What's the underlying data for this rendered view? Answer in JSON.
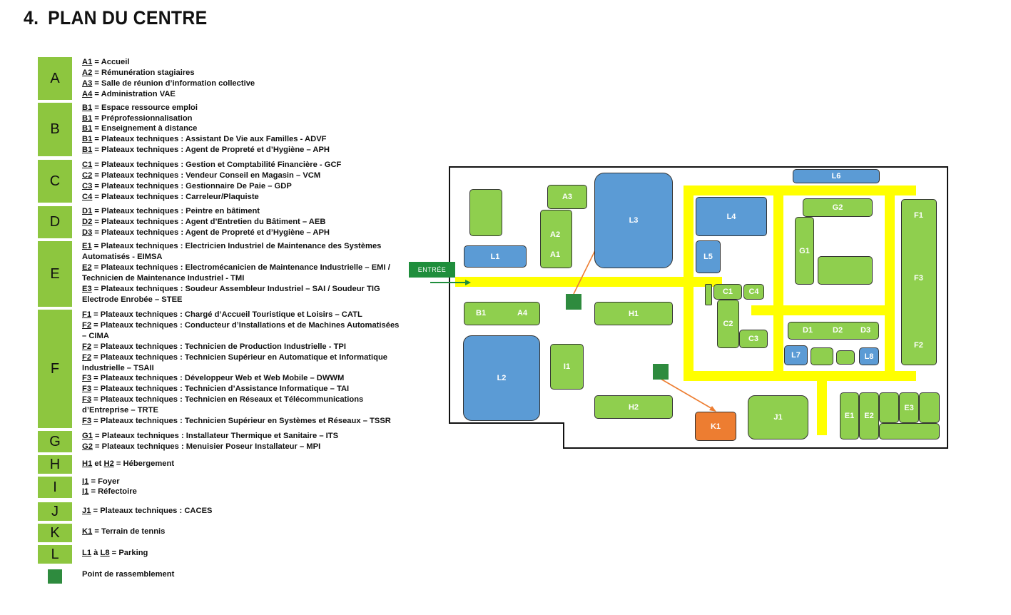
{
  "title": {
    "number": "4.",
    "text": "PLAN DU CENTRE"
  },
  "legend": [
    {
      "letter": "A",
      "lines": [
        {
          "code": "A1",
          "text": " = Accueil"
        },
        {
          "code": "A2",
          "text": " = Rémunération stagiaires"
        },
        {
          "code": "A3",
          "text": " = Salle de réunion d’information collective"
        },
        {
          "code": "A4",
          "text": " = Administration VAE"
        }
      ]
    },
    {
      "letter": "B",
      "lines": [
        {
          "code": "B1",
          "text": " = Espace ressource emploi"
        },
        {
          "code": "B1",
          "text": " = Préprofessionnalisation"
        },
        {
          "code": "B1",
          "text": " = Enseignement à distance"
        },
        {
          "code": "B1",
          "text": " = Plateaux techniques : Assistant De Vie aux Familles - ADVF"
        },
        {
          "code": "B1",
          "text": " = Plateaux techniques : Agent de Propreté et d’Hygiène – APH"
        }
      ]
    },
    {
      "letter": "C",
      "lines": [
        {
          "code": "C1",
          "text": " = Plateaux techniques : Gestion et Comptabilité Financière - GCF"
        },
        {
          "code": "C2",
          "text": " = Plateaux techniques : Vendeur Conseil en Magasin – VCM"
        },
        {
          "code": "C3",
          "text": " = Plateaux techniques : Gestionnaire De Paie – GDP"
        },
        {
          "code": "C4",
          "text": " = Plateaux techniques : Carreleur/Plaquiste"
        }
      ]
    },
    {
      "letter": "D",
      "lines": [
        {
          "code": "D1",
          "text": " = Plateaux techniques : Peintre en bâtiment"
        },
        {
          "code": "D2",
          "text": " = Plateaux techniques : Agent d’Entretien du Bâtiment – AEB"
        },
        {
          "code": "D3",
          "text": " = Plateaux techniques : Agent de Propreté et d’Hygiène – APH"
        }
      ]
    },
    {
      "letter": "E",
      "lines": [
        {
          "code": "E1",
          "text": " = Plateaux techniques : Electricien Industriel de Maintenance des Systèmes Automatisés - EIMSA"
        },
        {
          "code": "E2",
          "text": " = Plateaux techniques : Electromécanicien de Maintenance Industrielle – EMI / Technicien de Maintenance Industriel - TMI"
        },
        {
          "code": "E3",
          "text": " = Plateaux techniques : Soudeur Assembleur Industriel – SAI / Soudeur TIG Electrode Enrobée – STEE"
        }
      ]
    },
    {
      "letter": "F",
      "lines": [
        {
          "code": "F1",
          "text": " = Plateaux techniques : Chargé d’Accueil Touristique et Loisirs – CATL"
        },
        {
          "code": "F2",
          "text": " = Plateaux techniques : Conducteur d’Installations et de Machines Automatisées – CIMA"
        },
        {
          "code": "F2",
          "text": " = Plateaux techniques : Technicien de Production Industrielle - TPI"
        },
        {
          "code": "F2",
          "text": " = Plateaux techniques : Technicien Supérieur en Automatique et Informatique Industrielle – TSAII"
        },
        {
          "code": "F3",
          "text": " = Plateaux techniques : Développeur Web et Web Mobile – DWWM"
        },
        {
          "code": "F3",
          "text": " = Plateaux techniques : Technicien d’Assistance Informatique – TAI"
        },
        {
          "code": "F3",
          "text": " = Plateaux techniques : Technicien en Réseaux et Télécommunications d’Entreprise – TRTE"
        },
        {
          "code": "F3",
          "text": " = Plateaux techniques : Technicien Supérieur en Systèmes et Réseaux – TSSR"
        }
      ]
    },
    {
      "letter": "G",
      "lines": [
        {
          "code": "G1",
          "text": " = Plateaux techniques : Installateur Thermique et Sanitaire – ITS"
        },
        {
          "code": "G2",
          "text": " = Plateaux techniques : Menuisier Poseur Installateur – MPI"
        }
      ]
    },
    {
      "letter": "H",
      "lines": [
        {
          "code": "H1",
          "text": " et ",
          "code2": "H2",
          "text2": " = Hébergement"
        }
      ]
    },
    {
      "letter": "I",
      "lines": [
        {
          "code": "I1",
          "text": " = Foyer"
        },
        {
          "code": "I1",
          "text": " = Réfectoire"
        }
      ]
    },
    {
      "letter": "J",
      "lines": [
        {
          "code": "J1",
          "text": " = Plateaux techniques : CACES"
        }
      ]
    },
    {
      "letter": "K",
      "lines": [
        {
          "code": "K1",
          "text": " = Terrain de tennis"
        }
      ]
    },
    {
      "letter": "L",
      "lines": [
        {
          "code": "L1",
          "text": " à ",
          "code2": "L8",
          "text2": " = Parking"
        }
      ]
    },
    {
      "letter": "",
      "icon": "rally-point-icon",
      "lines": [
        {
          "code": "",
          "text": "Point de rassemblement"
        }
      ]
    }
  ],
  "map": {
    "entrance_label": "ENTRÉE",
    "colors": {
      "building": "#8fcf4e",
      "parking": "#5b9bd5",
      "tennis": "#ed7d31",
      "path": "#ffff00",
      "rally": "#2e8b3e",
      "arrow": "#ed7d31"
    },
    "labels": {
      "A1": "A1",
      "A2": "A2",
      "A3": "A3",
      "A4": "A4",
      "B1": "B1",
      "C1": "C1",
      "C2": "C2",
      "C3": "C3",
      "C4": "C4",
      "D1": "D1",
      "D2": "D2",
      "D3": "D3",
      "E1": "E1",
      "E2": "E2",
      "E3": "E3",
      "F1": "F1",
      "F2": "F2",
      "F3": "F3",
      "G1": "G1",
      "G2": "G2",
      "H1": "H1",
      "H2": "H2",
      "I1": "I1",
      "J1": "J1",
      "K1": "K1",
      "L1": "L1",
      "L2": "L2",
      "L3": "L3",
      "L4": "L4",
      "L5": "L5",
      "L6": "L6",
      "L7": "L7",
      "L8": "L8"
    }
  }
}
